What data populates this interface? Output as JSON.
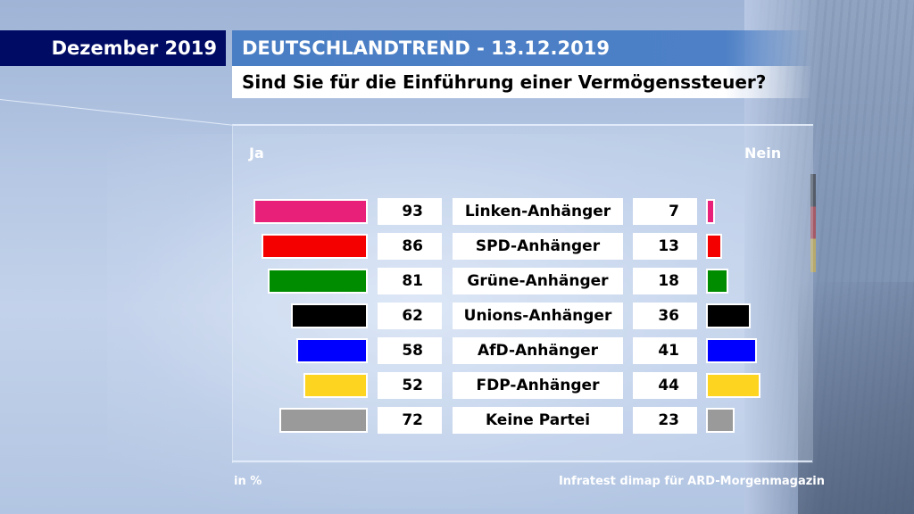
{
  "header": {
    "date_label": "Dezember 2019",
    "title": "DEUTSCHLANDTREND - 13.12.2019",
    "question": "Sind Sie für die Einführung einer Vermögenssteuer?"
  },
  "footer": {
    "unit": "in %",
    "source": "Infratest dimap für ARD-Morgenmagazin"
  },
  "chart_data": {
    "type": "bar",
    "title": "Sind Sie für die Einführung einer Vermögenssteuer?",
    "subtitle": "DEUTSCHLANDTREND - 13.12.2019",
    "unit": "in %",
    "xlabel": "",
    "ylabel": "",
    "ylim": [
      0,
      100
    ],
    "orientation": "horizontal-diverging",
    "left_label": "Ja",
    "right_label": "Nein",
    "categories": [
      "Linken-Anhänger",
      "SPD-Anhänger",
      "Grüne-Anhänger",
      "Unions-Anhänger",
      "AfD-Anhänger",
      "FDP-Anhänger",
      "Keine Partei"
    ],
    "series": [
      {
        "name": "Ja",
        "values": [
          93,
          86,
          81,
          62,
          58,
          52,
          72
        ]
      },
      {
        "name": "Nein",
        "values": [
          7,
          13,
          18,
          36,
          41,
          44,
          23
        ]
      }
    ],
    "colors": [
      "#e8207a",
      "#f50000",
      "#008c00",
      "#000000",
      "#0000ff",
      "#fdd41f",
      "#9a9a9a"
    ],
    "legend": "none",
    "grid": false
  }
}
